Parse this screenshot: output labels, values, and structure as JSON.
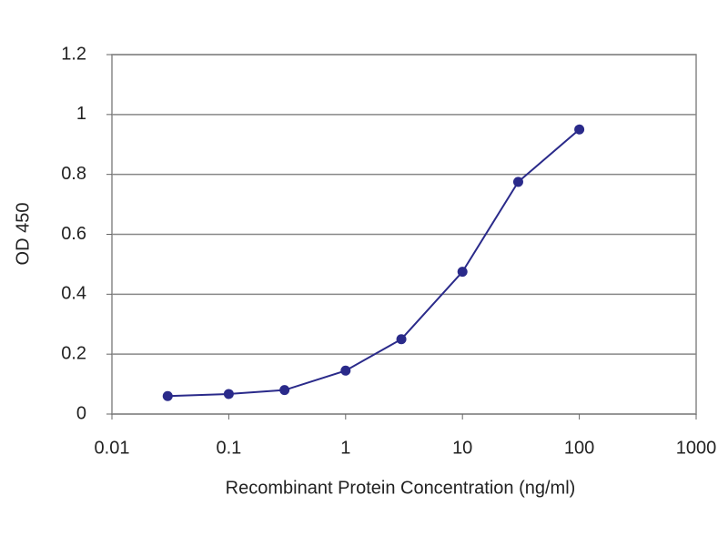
{
  "chart_data": {
    "type": "line",
    "y_label": "OD 450",
    "x_label": "Recombinant Protein Concentration (ng/ml)",
    "x": [
      0.03,
      0.1,
      0.3,
      1,
      3,
      10,
      30,
      100
    ],
    "series": [
      {
        "color": "#2a2a8a",
        "values": [
          0.06,
          0.067,
          0.08,
          0.145,
          0.25,
          0.475,
          0.775,
          0.95
        ]
      }
    ],
    "xlim": [
      0.01,
      1000
    ],
    "xticks": [
      0.01,
      0.1,
      1,
      10,
      100,
      1000
    ],
    "xlog": true,
    "ylim": [
      0,
      1.2
    ],
    "yticks": [
      0,
      0.2,
      0.4,
      0.6,
      0.8,
      1,
      1.2
    ],
    "grid": true
  }
}
